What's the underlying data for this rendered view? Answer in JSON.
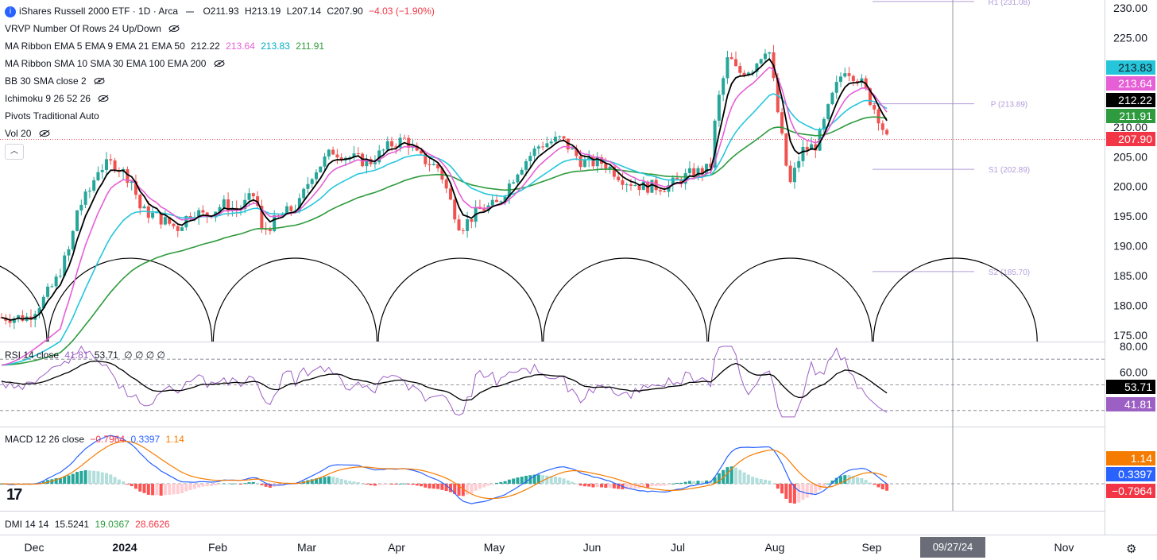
{
  "header": {
    "symbol": "iShares Russell 2000 ETF · 1D · Arca",
    "open": "O211.93",
    "high": "H213.19",
    "low": "L207.14",
    "close": "C207.90",
    "change": "−4.03 (−1.90%)"
  },
  "legends": {
    "vrvp": "VRVP Number Of Rows 24 Up/Down",
    "ribbon_ema": "MA Ribbon EMA 5 EMA 9 EMA 21 EMA 50",
    "ribbon_ema_values": [
      "212.22",
      "213.64",
      "213.83",
      "211.91"
    ],
    "ribbon_sma": "MA Ribbon SMA 10 SMA 30 EMA 100 EMA 200",
    "bb": "BB 30 SMA close 2",
    "ichimoku": "Ichimoku 9 26 52 26",
    "pivots": "Pivots Traditional Auto",
    "vol": "Vol 20",
    "rsi": "RSI 14 close",
    "rsi_values": [
      "41.81",
      "53.71",
      "∅",
      "∅",
      "∅",
      "∅"
    ],
    "macd": "MACD 12 26 close",
    "macd_values": [
      "−0.7964",
      "0.3397",
      "1.14"
    ],
    "dmi": "DMI 14 14",
    "dmi_values": [
      "15.5241",
      "19.0367",
      "28.6626"
    ]
  },
  "price_tags": [
    {
      "label": "213.83",
      "color": "#26c6da",
      "text_color": "#131722"
    },
    {
      "label": "213.64",
      "color": "#e65fd6",
      "text_color": "#ffffff"
    },
    {
      "label": "212.22",
      "color": "#000000",
      "text_color": "#ffffff"
    },
    {
      "label": "211.91",
      "color": "#2e9b3e",
      "text_color": "#ffffff"
    },
    {
      "label": "207.90",
      "color": "#f23645",
      "text_color": "#ffffff"
    }
  ],
  "rsi_tags": [
    {
      "label": "53.71",
      "color": "#000000"
    },
    {
      "label": "41.81",
      "color": "#9c5fc4"
    }
  ],
  "macd_tags": [
    {
      "label": "1.14",
      "color": "#f57c00",
      "text_color": "#ffffff"
    },
    {
      "label": "0.3397",
      "color": "#2962ff",
      "text_color": "#ffffff"
    },
    {
      "label": "−0.7964",
      "color": "#f23645",
      "text_color": "#ffffff"
    }
  ],
  "time_axis": [
    "Dec",
    "2024",
    "Feb",
    "Mar",
    "Apr",
    "May",
    "Jun",
    "Jul",
    "Aug",
    "Sep",
    "Nov"
  ],
  "crosshair_date": "09/27/24",
  "colors": {
    "up": "#26a69a",
    "down": "#ef5350",
    "ema5": "#000000",
    "ema9": "#e65fd6",
    "ema21": "#26c6da",
    "ema50": "#2e9b3e",
    "pivot": "#b39ddb",
    "rsi": "#9c5fc4",
    "macd": "#2962ff",
    "signal": "#f57c00"
  },
  "chart_data": [
    {
      "type": "candlestick",
      "title": "iShares Russell 2000 ETF · 1D · Arca",
      "y_ticks": [
        "230.00",
        "225.00",
        "220.00",
        "215.00",
        "210.00",
        "205.00",
        "200.00",
        "195.00",
        "190.00",
        "185.00",
        "180.00",
        "175.00"
      ],
      "ylim": [
        175,
        230
      ],
      "price_path": [
        [
          "2023-11-29",
          178
        ],
        [
          "2023-12-04",
          181
        ],
        [
          "2023-12-08",
          184
        ],
        [
          "2023-12-13",
          190
        ],
        [
          "2023-12-15",
          196
        ],
        [
          "2023-12-19",
          199
        ],
        [
          "2023-12-22",
          203
        ],
        [
          "2023-12-27",
          204
        ],
        [
          "2024-01-02",
          201
        ],
        [
          "2024-01-05",
          196
        ],
        [
          "2024-01-10",
          195
        ],
        [
          "2024-01-17",
          193
        ],
        [
          "2024-01-22",
          196
        ],
        [
          "2024-01-26",
          195
        ],
        [
          "2024-02-01",
          197
        ],
        [
          "2024-02-06",
          196
        ],
        [
          "2024-02-12",
          199
        ],
        [
          "2024-02-13",
          192
        ],
        [
          "2024-02-20",
          195
        ],
        [
          "2024-02-26",
          197
        ],
        [
          "2024-03-01",
          202
        ],
        [
          "2024-03-08",
          206
        ],
        [
          "2024-03-13",
          205
        ],
        [
          "2024-03-20",
          204
        ],
        [
          "2024-03-27",
          207
        ],
        [
          "2024-04-01",
          208
        ],
        [
          "2024-04-05",
          205
        ],
        [
          "2024-04-12",
          203
        ],
        [
          "2024-04-16",
          197
        ],
        [
          "2024-04-19",
          193
        ],
        [
          "2024-04-25",
          196
        ],
        [
          "2024-05-01",
          197
        ],
        [
          "2024-05-08",
          203
        ],
        [
          "2024-05-15",
          207
        ],
        [
          "2024-05-22",
          208
        ],
        [
          "2024-05-29",
          204
        ],
        [
          "2024-06-05",
          204
        ],
        [
          "2024-06-12",
          201
        ],
        [
          "2024-06-18",
          200
        ],
        [
          "2024-06-26",
          200
        ],
        [
          "2024-07-03",
          202
        ],
        [
          "2024-07-10",
          203
        ],
        [
          "2024-07-12",
          213
        ],
        [
          "2024-07-16",
          222
        ],
        [
          "2024-07-19",
          219
        ],
        [
          "2024-07-24",
          220
        ],
        [
          "2024-07-29",
          224
        ],
        [
          "2024-08-01",
          213
        ],
        [
          "2024-08-05",
          200
        ],
        [
          "2024-08-09",
          206
        ],
        [
          "2024-08-14",
          207
        ],
        [
          "2024-08-19",
          215
        ],
        [
          "2024-08-23",
          220
        ],
        [
          "2024-08-28",
          218
        ],
        [
          "2024-09-03",
          212
        ],
        [
          "2024-09-06",
          207.9
        ]
      ],
      "ema5_last": 212.22,
      "ema9_last": 213.64,
      "ema21_last": 213.83,
      "ema50_last": 211.91,
      "pivots": [
        {
          "label": "R1 (231.08)",
          "value": 231.08
        },
        {
          "label": "P (213.89)",
          "value": 213.89
        },
        {
          "label": "S1 (202.89)",
          "value": 202.89
        },
        {
          "label": "S2 (185.70)",
          "value": 185.7
        }
      ],
      "last_close": 207.9
    },
    {
      "type": "line",
      "title": "RSI 14 close",
      "y_ticks": [
        "80.00",
        "60.00"
      ],
      "ylim": [
        20,
        80
      ],
      "bands": [
        70,
        50,
        30
      ],
      "rsi_last": 41.81,
      "rsi_ma_last": 53.71
    },
    {
      "type": "bar",
      "title": "MACD 12 26 close",
      "ylim": [
        -6,
        6
      ],
      "macd_last": 0.3397,
      "signal_last": 1.14,
      "histogram_last": -0.7964
    }
  ]
}
